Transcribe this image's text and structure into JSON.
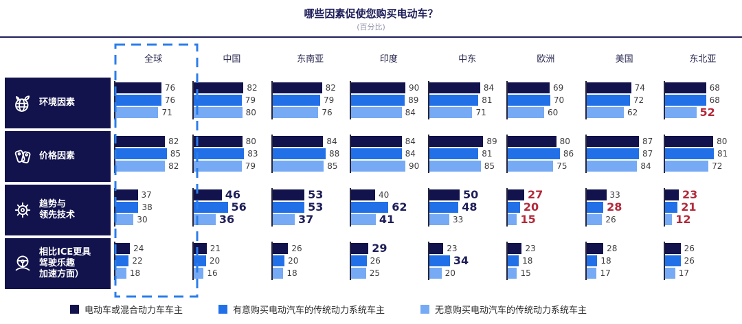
{
  "title": "哪些因素促使您购买电动车？",
  "subtitle": "(百分比)",
  "colors": {
    "navy": "#12124d",
    "blue": "#2170e8",
    "light_blue": "#76aaf4",
    "red_highlight": "#b3293a",
    "bold_navy_highlight": "#1e1e5a",
    "axis": "#26263e",
    "global_box_border": "#2b7de9",
    "title_navy": "#1e1e5a"
  },
  "legend": [
    {
      "label": "电动车或混合动力车车主",
      "color": "#12124d"
    },
    {
      "label": "有意购买电动汽车的传统动力系统车主",
      "color": "#2170e8"
    },
    {
      "label": "无意购买电动汽车的传统动力系统车主",
      "color": "#76aaf4"
    }
  ],
  "chart_data": {
    "type": "bar",
    "orientation": "horizontal",
    "unit": "percent",
    "xlim": [
      0,
      100
    ],
    "title": "哪些因素促使您购买电动车？",
    "subtitle": "(百分比)",
    "series": [
      "电动车或混合动力车车主",
      "有意购买电动汽车的传统动力系统车主",
      "无意购买电动汽车的传统动力系统车主"
    ],
    "columns": [
      {
        "key": "global",
        "label": "全球",
        "highlighted": true
      },
      {
        "key": "china",
        "label": "中国",
        "highlighted": false
      },
      {
        "key": "southeast-asia",
        "label": "东南亚",
        "highlighted": false
      },
      {
        "key": "india",
        "label": "印度",
        "highlighted": false
      },
      {
        "key": "middle-east",
        "label": "中东",
        "highlighted": false
      },
      {
        "key": "europe",
        "label": "欧洲",
        "highlighted": false
      },
      {
        "key": "usa",
        "label": "美国",
        "highlighted": false
      },
      {
        "key": "northeast-asia",
        "label": "东北亚",
        "highlighted": false
      }
    ],
    "rows": [
      {
        "key": "environment",
        "label": "环境因素",
        "icon": "globe-leaf-icon",
        "values": [
          [
            76,
            76,
            71
          ],
          [
            82,
            79,
            80
          ],
          [
            82,
            79,
            76
          ],
          [
            90,
            89,
            84
          ],
          [
            84,
            81,
            71
          ],
          [
            69,
            70,
            60
          ],
          [
            74,
            72,
            62
          ],
          [
            68,
            68,
            52
          ]
        ],
        "styles": [
          [
            "n",
            "n",
            "n"
          ],
          [
            "n",
            "n",
            "n"
          ],
          [
            "n",
            "n",
            "n"
          ],
          [
            "n",
            "n",
            "n"
          ],
          [
            "n",
            "n",
            "n"
          ],
          [
            "n",
            "n",
            "n"
          ],
          [
            "n",
            "n",
            "n"
          ],
          [
            "n",
            "n",
            "r"
          ]
        ]
      },
      {
        "key": "price",
        "label": "价格因素",
        "icon": "price-tags-icon",
        "values": [
          [
            82,
            85,
            82
          ],
          [
            80,
            83,
            79
          ],
          [
            84,
            88,
            85
          ],
          [
            84,
            84,
            90
          ],
          [
            89,
            81,
            85
          ],
          [
            80,
            86,
            75
          ],
          [
            87,
            87,
            84
          ],
          [
            80,
            81,
            72
          ]
        ],
        "styles": [
          [
            "n",
            "n",
            "n"
          ],
          [
            "n",
            "n",
            "n"
          ],
          [
            "n",
            "n",
            "n"
          ],
          [
            "n",
            "n",
            "n"
          ],
          [
            "n",
            "n",
            "n"
          ],
          [
            "n",
            "n",
            "n"
          ],
          [
            "n",
            "n",
            "n"
          ],
          [
            "n",
            "n",
            "n"
          ]
        ]
      },
      {
        "key": "trends-technology",
        "label": "趋势与\n领先技术",
        "icon": "gear-icon",
        "values": [
          [
            37,
            38,
            30
          ],
          [
            46,
            56,
            36
          ],
          [
            53,
            53,
            37
          ],
          [
            40,
            62,
            41
          ],
          [
            50,
            48,
            33
          ],
          [
            27,
            20,
            15
          ],
          [
            33,
            28,
            26
          ],
          [
            23,
            21,
            12
          ]
        ],
        "styles": [
          [
            "n",
            "n",
            "n"
          ],
          [
            "b",
            "b",
            "b"
          ],
          [
            "b",
            "b",
            "b"
          ],
          [
            "n",
            "b",
            "b"
          ],
          [
            "b",
            "b",
            "n"
          ],
          [
            "r",
            "r",
            "r"
          ],
          [
            "n",
            "r",
            "n"
          ],
          [
            "r",
            "r",
            "r"
          ]
        ]
      },
      {
        "key": "driving-fun",
        "label": "相比ICE更具\n驾驶乐趣\n加速方面）",
        "icon": "steering-wheel-icon",
        "values": [
          [
            24,
            22,
            18
          ],
          [
            21,
            20,
            16
          ],
          [
            26,
            20,
            18
          ],
          [
            29,
            26,
            25
          ],
          [
            23,
            34,
            20
          ],
          [
            23,
            18,
            15
          ],
          [
            28,
            18,
            17
          ],
          [
            26,
            26,
            17
          ]
        ],
        "styles": [
          [
            "n",
            "n",
            "n"
          ],
          [
            "n",
            "n",
            "n"
          ],
          [
            "n",
            "n",
            "n"
          ],
          [
            "b",
            "n",
            "n"
          ],
          [
            "n",
            "b",
            "n"
          ],
          [
            "n",
            "n",
            "n"
          ],
          [
            "n",
            "n",
            "n"
          ],
          [
            "n",
            "n",
            "n"
          ]
        ]
      }
    ]
  }
}
